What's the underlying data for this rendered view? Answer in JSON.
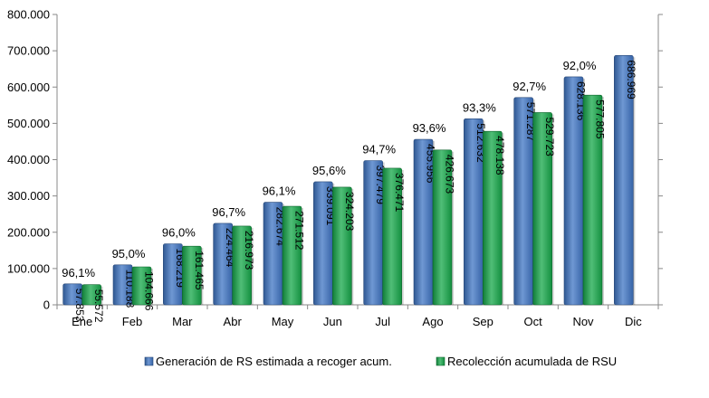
{
  "chart_data": {
    "type": "bar",
    "categories": [
      "Ene",
      "Feb",
      "Mar",
      "Abr",
      "May",
      "Jun",
      "Jul",
      "Ago",
      "Sep",
      "Oct",
      "Nov",
      "Dic"
    ],
    "series": [
      {
        "name": "Generación de RS estimada a recoger acum.",
        "color": "#3f75c4",
        "values": [
          57853,
          110188,
          168219,
          224464,
          282674,
          339091,
          397479,
          455956,
          512632,
          571287,
          628136,
          686969
        ],
        "value_labels": [
          "57.853",
          "110.188",
          "168.219",
          "224.464",
          "282.674",
          "339.091",
          "397.479",
          "455.956",
          "512.632",
          "571.287",
          "628.136",
          "686.969"
        ]
      },
      {
        "name": "Recolección acumulada de RSU",
        "color": "#16a84a",
        "values": [
          55572,
          104666,
          161465,
          216973,
          271512,
          324203,
          376471,
          426673,
          478138,
          529723,
          577805,
          null
        ],
        "value_labels": [
          "55.572",
          "104.666",
          "161.465",
          "216.973",
          "271.512",
          "324.203",
          "376.471",
          "426.673",
          "478.138",
          "529.723",
          "577.805",
          ""
        ]
      }
    ],
    "annotations": [
      "96,1%",
      "95,0%",
      "96,0%",
      "96,7%",
      "96,1%",
      "95,6%",
      "94,7%",
      "93,6%",
      "93,3%",
      "92,7%",
      "92,0%",
      ""
    ],
    "y_ticks": [
      0,
      100000,
      200000,
      300000,
      400000,
      500000,
      600000,
      700000,
      800000
    ],
    "y_tick_labels": [
      "0",
      "100.000",
      "200.000",
      "300.000",
      "400.000",
      "500.000",
      "600.000",
      "700.000",
      "800.000"
    ],
    "ylim": [
      0,
      800000
    ],
    "title": "",
    "xlabel": "",
    "ylabel": "",
    "grid": false,
    "legend_position": "bottom"
  }
}
